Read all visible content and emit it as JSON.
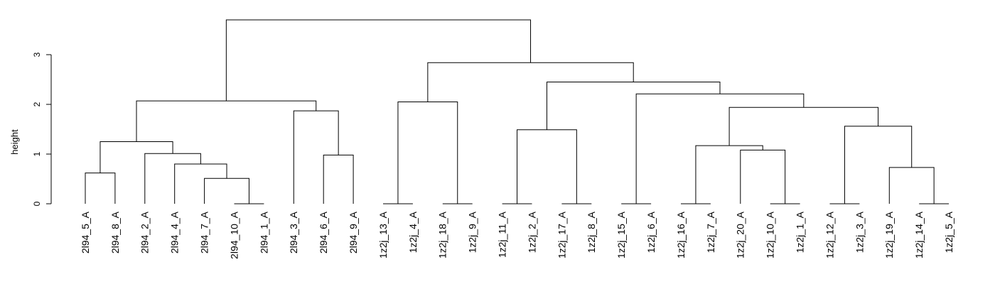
{
  "chart_data": {
    "type": "dendrogram",
    "title": "",
    "ylabel": "height",
    "ylim": [
      0,
      3.8
    ],
    "yticks": [
      0,
      1,
      2,
      3
    ],
    "grid": false,
    "leaves": [
      "2l94_5_A",
      "2l94_8_A",
      "2l94_2_A",
      "2l94_4_A",
      "2l94_7_A",
      "2l94_10_A",
      "2l94_1_A",
      "2l94_3_A",
      "2l94_6_A",
      "2l94_9_A",
      "1z2j_13_A",
      "1z2j_4_A",
      "1z2j_18_A",
      "1z2j_9_A",
      "1z2j_11_A",
      "1z2j_2_A",
      "1z2j_17_A",
      "1z2j_8_A",
      "1z2j_15_A",
      "1z2j_6_A",
      "1z2j_16_A",
      "1z2j_7_A",
      "1z2j_20_A",
      "1z2j_10_A",
      "1z2j_1_A",
      "1z2j_12_A",
      "1z2j_3_A",
      "1z2j_19_A",
      "1z2j_14_A",
      "1z2j_5_A"
    ],
    "merges": [
      {
        "a": "l5",
        "b": "l6",
        "height": 0.0
      },
      {
        "a": "l10",
        "b": "l11",
        "height": 0.0
      },
      {
        "a": "l12",
        "b": "l13",
        "height": 0.0
      },
      {
        "a": "l14",
        "b": "l15",
        "height": 0.0
      },
      {
        "a": "l16",
        "b": "l17",
        "height": 0.0
      },
      {
        "a": "l18",
        "b": "l19",
        "height": 0.0
      },
      {
        "a": "l20",
        "b": "l21",
        "height": 0.0
      },
      {
        "a": "l23",
        "b": "l24",
        "height": 0.0
      },
      {
        "a": "l25",
        "b": "l26",
        "height": 0.0
      },
      {
        "a": "l28",
        "b": "l29",
        "height": 0.0
      },
      {
        "a": "l4",
        "b": "m0",
        "height": 0.51
      },
      {
        "a": "l0",
        "b": "l1",
        "height": 0.62
      },
      {
        "a": "l27",
        "b": "m9",
        "height": 0.73
      },
      {
        "a": "l3",
        "b": "m10",
        "height": 0.8
      },
      {
        "a": "l8",
        "b": "l9",
        "height": 0.98
      },
      {
        "a": "l2",
        "b": "m13",
        "height": 1.01
      },
      {
        "a": "l22",
        "b": "m7",
        "height": 1.08
      },
      {
        "a": "m6",
        "b": "m16",
        "height": 1.17
      },
      {
        "a": "m11",
        "b": "m15",
        "height": 1.25
      },
      {
        "a": "m3",
        "b": "m4",
        "height": 1.49
      },
      {
        "a": "m8",
        "b": "m12",
        "height": 1.56
      },
      {
        "a": "l7",
        "b": "m14",
        "height": 1.87
      },
      {
        "a": "m17",
        "b": "m20",
        "height": 1.94
      },
      {
        "a": "m1",
        "b": "m2",
        "height": 2.05
      },
      {
        "a": "m18",
        "b": "m21",
        "height": 2.07
      },
      {
        "a": "m5",
        "b": "m22",
        "height": 2.21
      },
      {
        "a": "m19",
        "b": "m25",
        "height": 2.45
      },
      {
        "a": "m23",
        "b": "m26",
        "height": 2.84
      },
      {
        "a": "m24",
        "b": "m27",
        "height": 3.7
      }
    ]
  }
}
